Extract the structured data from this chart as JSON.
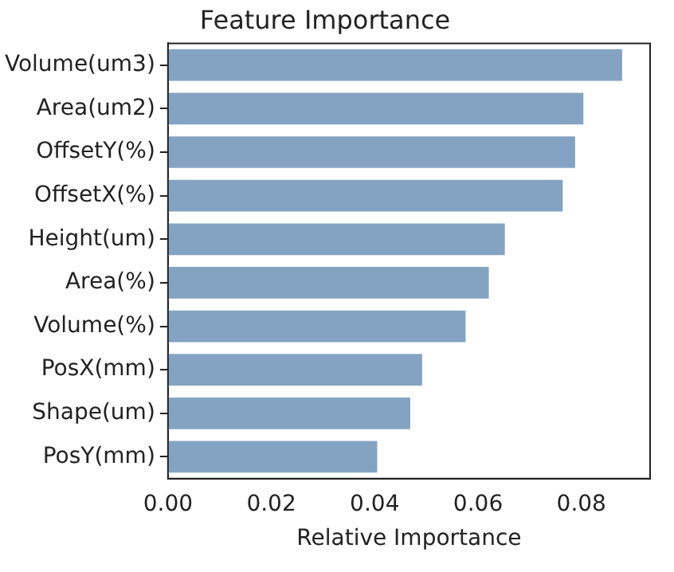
{
  "chart_data": {
    "type": "bar",
    "orientation": "horizontal",
    "title": "Feature Importance",
    "xlabel": "Relative Importance",
    "categories": [
      "Volume(um3)",
      "Area(um2)",
      "OffsetY(%)",
      "OffsetX(%)",
      "Height(um)",
      "Area(%)",
      "Volume(%)",
      "PosX(mm)",
      "Shape(um)",
      "PosY(mm)"
    ],
    "values": [
      0.0882,
      0.0807,
      0.0791,
      0.0767,
      0.0655,
      0.0624,
      0.0579,
      0.0495,
      0.0472,
      0.0408
    ],
    "color": "#84a3c2",
    "xlim": [
      0,
      0.0933
    ],
    "xticks": [
      {
        "value": 0,
        "label": "0.00"
      },
      {
        "value": 0.02,
        "label": "0.02"
      },
      {
        "value": 0.04,
        "label": "0.04"
      },
      {
        "value": 0.06,
        "label": "0.06"
      },
      {
        "value": 0.08,
        "label": "0.08"
      }
    ],
    "grid": false,
    "legend": false
  }
}
